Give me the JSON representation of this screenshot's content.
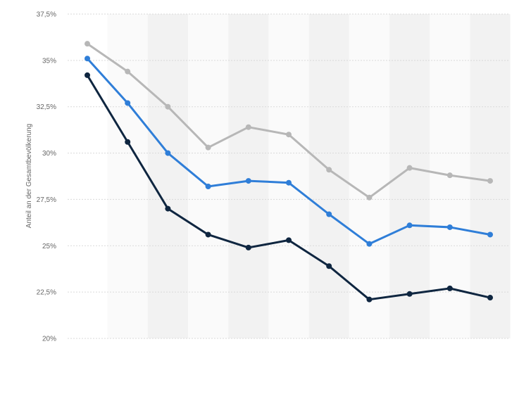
{
  "chart_data": {
    "type": "line",
    "title": "",
    "xlabel": "",
    "ylabel": "Anteil an der Gesamtbevölkerung",
    "ylim": [
      20,
      37.5
    ],
    "yticks": [
      20,
      22.5,
      25,
      27.5,
      30,
      32.5,
      35,
      37.5
    ],
    "ytick_labels": [
      "20%",
      "22,5%",
      "25%",
      "27,5%",
      "30%",
      "32,5%",
      "35%",
      "37,5%"
    ],
    "categories": [
      "",
      "",
      "",
      "",
      "",
      "",
      "",
      "",
      "",
      "",
      ""
    ],
    "grid": "horizontal",
    "legend": "none",
    "series": [
      {
        "color": "#b7b7b7",
        "values": [
          35.9,
          34.4,
          32.5,
          30.3,
          31.4,
          31.0,
          29.1,
          27.6,
          29.2,
          28.8,
          28.5
        ]
      },
      {
        "color": "#2f7ed8",
        "values": [
          35.1,
          32.7,
          30.0,
          28.2,
          28.5,
          28.4,
          26.7,
          25.1,
          26.1,
          26.0,
          25.6
        ]
      },
      {
        "color": "#0f2640",
        "values": [
          34.2,
          30.6,
          27.0,
          25.6,
          24.9,
          25.3,
          23.9,
          22.1,
          22.4,
          22.7,
          22.2
        ]
      }
    ]
  }
}
